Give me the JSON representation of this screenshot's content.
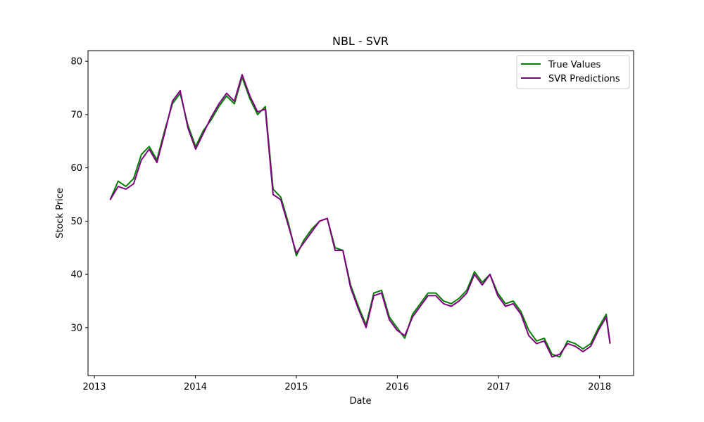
{
  "chart_data": {
    "type": "line",
    "title": "NBL - SVR",
    "xlabel": "Date",
    "ylabel": "Stock Price",
    "x_ticks": [
      "2013",
      "2014",
      "2015",
      "2016",
      "2017",
      "2018"
    ],
    "y_ticks": [
      30,
      40,
      50,
      60,
      70,
      80
    ],
    "xlim": [
      "2012-12-09",
      "2018-05-04"
    ],
    "ylim": [
      21,
      82
    ],
    "grid": false,
    "legend": {
      "position": "top-right"
    },
    "colors": {
      "true_values": "#008000",
      "svr_predictions": "#800080"
    },
    "x": [
      "2013-02-27",
      "2013-03-28",
      "2013-04-25",
      "2013-05-23",
      "2013-06-20",
      "2013-07-18",
      "2013-08-15",
      "2013-09-12",
      "2013-10-10",
      "2013-11-07",
      "2013-12-05",
      "2014-01-02",
      "2014-01-30",
      "2014-02-27",
      "2014-03-27",
      "2014-04-24",
      "2014-05-22",
      "2014-06-19",
      "2014-07-17",
      "2014-08-14",
      "2014-09-11",
      "2014-10-09",
      "2014-11-06",
      "2014-12-04",
      "2015-01-01",
      "2015-01-29",
      "2015-02-26",
      "2015-03-26",
      "2015-04-23",
      "2015-05-21",
      "2015-06-18",
      "2015-07-16",
      "2015-08-13",
      "2015-09-10",
      "2015-10-08",
      "2015-11-05",
      "2015-12-03",
      "2015-12-31",
      "2016-01-28",
      "2016-02-25",
      "2016-03-24",
      "2016-04-21",
      "2016-05-19",
      "2016-06-16",
      "2016-07-14",
      "2016-08-11",
      "2016-09-08",
      "2016-10-06",
      "2016-11-03",
      "2016-12-01",
      "2016-12-29",
      "2017-01-26",
      "2017-02-23",
      "2017-03-23",
      "2017-04-20",
      "2017-05-18",
      "2017-06-15",
      "2017-07-13",
      "2017-08-10",
      "2017-09-07",
      "2017-10-05",
      "2017-11-02",
      "2017-11-30",
      "2017-12-28",
      "2018-01-25",
      "2018-02-08"
    ],
    "series": [
      {
        "name": "True Values",
        "values": [
          54.0,
          57.5,
          56.5,
          58.0,
          62.5,
          64.0,
          61.5,
          67.0,
          72.0,
          74.0,
          68.0,
          64.0,
          67.0,
          69.0,
          71.5,
          73.5,
          72.0,
          77.0,
          73.0,
          70.0,
          71.5,
          56.0,
          54.5,
          49.5,
          43.5,
          46.5,
          48.5,
          50.0,
          50.5,
          45.0,
          44.5,
          38.0,
          34.0,
          30.5,
          36.5,
          37.0,
          32.0,
          30.0,
          28.0,
          32.5,
          34.5,
          36.5,
          36.5,
          35.0,
          34.5,
          35.5,
          37.0,
          40.5,
          38.5,
          40.0,
          36.5,
          34.5,
          35.0,
          33.0,
          29.5,
          27.5,
          28.0,
          25.0,
          24.5,
          27.5,
          27.0,
          26.0,
          27.0,
          30.0,
          32.5,
          27.0
        ]
      },
      {
        "name": "SVR Predictions",
        "values": [
          54.0,
          56.5,
          56.0,
          57.0,
          61.5,
          63.5,
          61.0,
          66.5,
          72.5,
          74.5,
          67.5,
          63.5,
          66.5,
          69.5,
          72.0,
          74.0,
          72.5,
          77.5,
          73.5,
          70.5,
          71.0,
          55.0,
          54.0,
          49.0,
          44.0,
          46.0,
          48.0,
          50.0,
          50.5,
          44.5,
          44.5,
          37.5,
          33.5,
          30.0,
          36.0,
          36.5,
          31.5,
          29.5,
          28.5,
          32.0,
          34.0,
          36.0,
          36.0,
          34.5,
          34.0,
          35.0,
          36.5,
          40.0,
          38.0,
          40.0,
          36.0,
          34.0,
          34.5,
          32.5,
          28.5,
          27.0,
          27.5,
          24.5,
          25.0,
          27.0,
          26.5,
          25.5,
          26.5,
          29.5,
          32.0,
          27.0
        ]
      }
    ]
  }
}
